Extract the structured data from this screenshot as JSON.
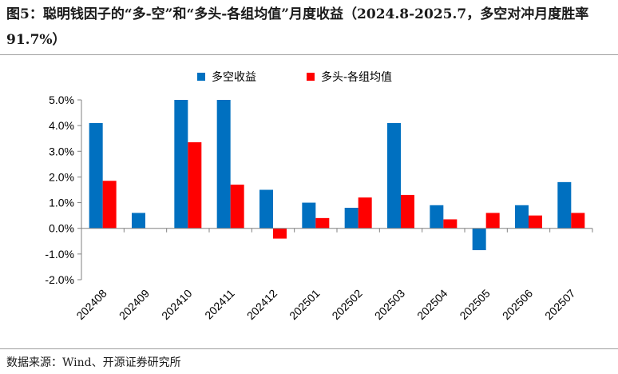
{
  "title": "图5：聪明钱因子的“多-空”和“多头-各组均值”月度收益（2024.8-2025.7，多空对冲月度胜率 91.7%）",
  "source": "数据来源：Wind、开源证券研究所",
  "chart_data": {
    "type": "bar",
    "categories": [
      "202408",
      "202409",
      "202410",
      "202411",
      "202412",
      "202501",
      "202502",
      "202503",
      "202504",
      "202505",
      "202506",
      "202507"
    ],
    "series": [
      {
        "name": "多空收益",
        "color": "#0070C0",
        "values": [
          4.1,
          0.6,
          5.0,
          5.0,
          1.5,
          1.0,
          0.8,
          4.1,
          0.9,
          -0.85,
          0.9,
          1.8
        ]
      },
      {
        "name": "多头-各组均值",
        "color": "#FF0000",
        "values": [
          1.85,
          0.0,
          3.35,
          1.7,
          -0.4,
          0.4,
          1.2,
          1.3,
          0.35,
          0.6,
          0.5,
          0.6
        ]
      }
    ],
    "ylim": [
      -2.0,
      5.0
    ],
    "yticks": [
      "5.0%",
      "4.0%",
      "3.0%",
      "2.0%",
      "1.0%",
      "0.0%",
      "-1.0%",
      "-2.0%"
    ],
    "legend_position": "top-center",
    "grid": false
  }
}
